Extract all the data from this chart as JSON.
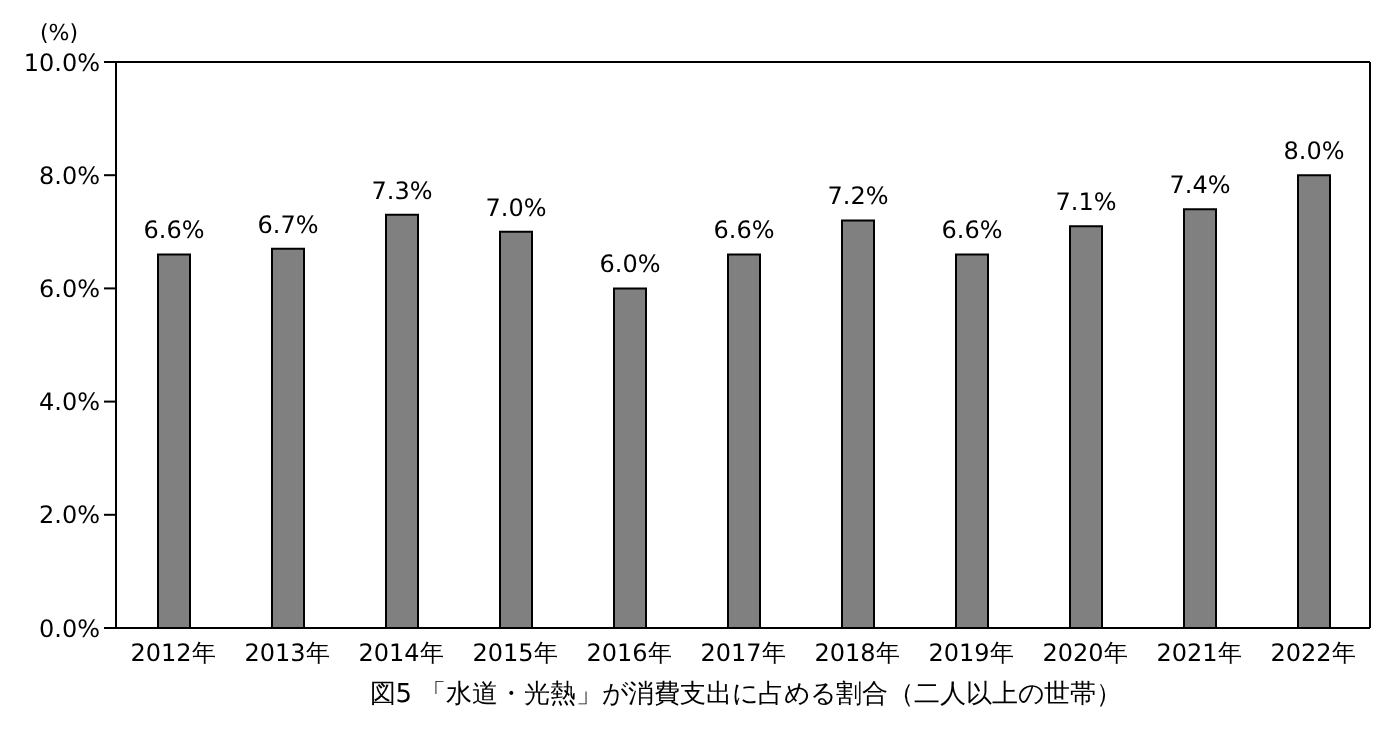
{
  "chart_data": {
    "type": "bar",
    "title": "図5 「水道・光熱」が消費支出に占める割合（二人以上の世帯）",
    "ylabel": "(%)",
    "categories": [
      "2012年",
      "2013年",
      "2014年",
      "2015年",
      "2016年",
      "2017年",
      "2018年",
      "2019年",
      "2020年",
      "2021年",
      "2022年"
    ],
    "values": [
      6.6,
      6.7,
      7.3,
      7.0,
      6.0,
      6.6,
      7.2,
      6.6,
      7.1,
      7.4,
      8.0
    ],
    "value_labels": [
      "6.6%",
      "6.7%",
      "7.3%",
      "7.0%",
      "6.0%",
      "6.6%",
      "7.2%",
      "6.6%",
      "7.1%",
      "7.4%",
      "8.0%"
    ],
    "color": "#808080",
    "ylim": [
      0,
      10
    ],
    "yticks": [
      {
        "value": 0,
        "label": "0.0%"
      },
      {
        "value": 2,
        "label": "2.0%"
      },
      {
        "value": 4,
        "label": "4.0%"
      },
      {
        "value": 6,
        "label": "6.0%"
      },
      {
        "value": 8,
        "label": "8.0%"
      },
      {
        "value": 10,
        "label": "10.0%"
      }
    ],
    "grid": false,
    "legend": false
  }
}
